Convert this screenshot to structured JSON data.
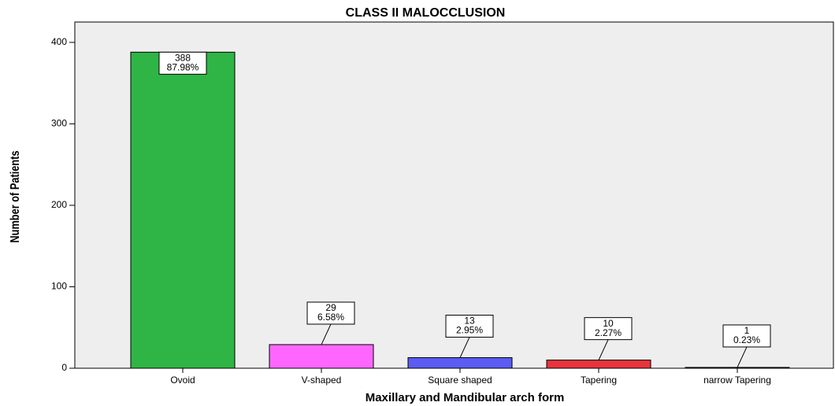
{
  "chart_data": {
    "type": "bar",
    "title": "CLASS II MALOCCLUSION",
    "x_label": "Maxillary and Mandibular arch form",
    "y_label": "Number of Patients",
    "categories": [
      "Ovoid",
      "V-shaped",
      "Square shaped",
      "Tapering",
      "narrow Tapering"
    ],
    "values": [
      388,
      29,
      13,
      10,
      1
    ],
    "percentages": [
      87.98,
      6.58,
      2.95,
      2.27,
      0.23
    ],
    "percentage_labels": [
      "87.98%",
      "6.58%",
      "2.95%",
      "2.27%",
      "0.23%"
    ],
    "colors": [
      "#2fb545",
      "#ff66ff",
      "#5c5cf2",
      "#e8343c",
      "#555555"
    ],
    "ylim": [
      0,
      425
    ],
    "yticks": [
      0,
      100,
      200,
      300,
      400
    ],
    "grid": false
  }
}
